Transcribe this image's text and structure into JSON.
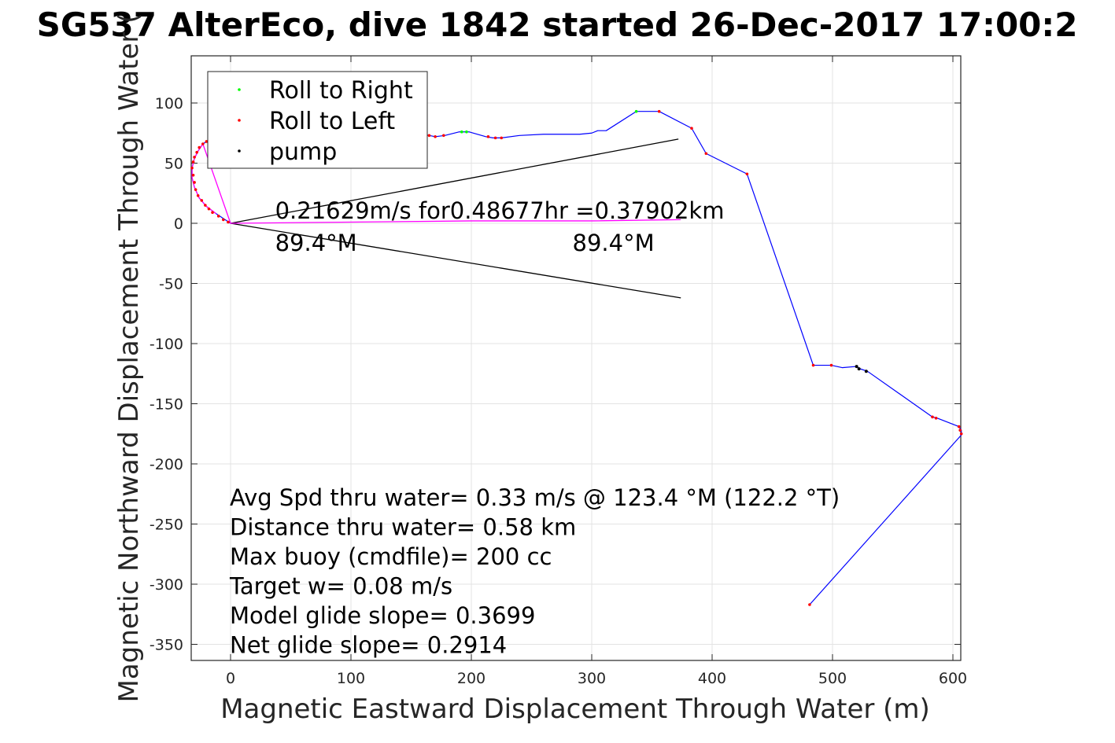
{
  "chart_data": {
    "type": "scatter",
    "title": "SG537 AlterEco, dive 1842 started 26-Dec-2017 17:00:2",
    "xlabel": "Magnetic Eastward Displacement Through Water (m)",
    "ylabel": "Magnetic Northward Displacement Through Water (",
    "xlim": [
      -32,
      606
    ],
    "ylim": [
      -364,
      140
    ],
    "x_ticks": [
      0,
      100,
      200,
      300,
      400,
      500,
      600
    ],
    "y_ticks": [
      100,
      50,
      0,
      -50,
      -100,
      -150,
      -200,
      -250,
      -300,
      -350
    ],
    "grid": true,
    "legend_placement": "top-left",
    "legend": [
      {
        "label": "Roll to Right",
        "color": "#00ff00"
      },
      {
        "label": "Roll to Left",
        "color": "#ff0000"
      },
      {
        "label": "pump",
        "color": "#000000"
      }
    ],
    "track": {
      "color": "#0000ff",
      "points": [
        [
          0,
          0
        ],
        [
          -12,
          8
        ],
        [
          -20,
          14
        ],
        [
          -26,
          21
        ],
        [
          -30,
          30
        ],
        [
          -32,
          38
        ],
        [
          -32,
          46
        ],
        [
          -30,
          54
        ],
        [
          -27,
          60
        ],
        [
          -23,
          66
        ],
        [
          -18,
          69
        ],
        [
          -10,
          72
        ],
        [
          0,
          74
        ],
        [
          20,
          75
        ],
        [
          50,
          75
        ],
        [
          80,
          75
        ],
        [
          110,
          75
        ],
        [
          140,
          74
        ],
        [
          160,
          74
        ],
        [
          165,
          73
        ],
        [
          170,
          72
        ],
        [
          178,
          73
        ],
        [
          190,
          76
        ],
        [
          198,
          76
        ],
        [
          212,
          72
        ],
        [
          218,
          71
        ],
        [
          225,
          71
        ],
        [
          240,
          73
        ],
        [
          260,
          74
        ],
        [
          290,
          74
        ],
        [
          300,
          75
        ],
        [
          305,
          77
        ],
        [
          312,
          77
        ],
        [
          337,
          93
        ],
        [
          356,
          93
        ],
        [
          383,
          79
        ],
        [
          395,
          58
        ],
        [
          429,
          41
        ],
        [
          484,
          -118
        ],
        [
          499,
          -118
        ],
        [
          508,
          -120
        ],
        [
          520,
          -119
        ],
        [
          523,
          -121
        ],
        [
          529,
          -123
        ],
        [
          583,
          -161
        ],
        [
          587,
          -162
        ],
        [
          605,
          -169
        ],
        [
          607,
          -172
        ],
        [
          607,
          -176
        ],
        [
          481,
          -317
        ]
      ]
    },
    "current_track": {
      "color": "#ff00ff",
      "points": [
        [
          -12,
          8
        ],
        [
          -20,
          14
        ],
        [
          -26,
          21
        ],
        [
          -30,
          30
        ],
        [
          -32,
          38
        ],
        [
          -32,
          46
        ],
        [
          -30,
          54
        ],
        [
          -27,
          60
        ],
        [
          -23,
          66
        ],
        [
          0,
          0
        ],
        [
          100,
          1
        ],
        [
          200,
          2
        ],
        [
          300,
          2
        ],
        [
          374,
          3
        ]
      ]
    },
    "roll_right_points": [
      [
        192,
        76
      ],
      [
        196,
        76
      ],
      [
        337,
        93
      ]
    ],
    "roll_left_points": [
      [
        -2,
        1
      ],
      [
        -6,
        3
      ],
      [
        -10,
        6
      ],
      [
        -15,
        9
      ],
      [
        -18,
        12
      ],
      [
        -21,
        15
      ],
      [
        -24,
        19
      ],
      [
        -27,
        23
      ],
      [
        -29,
        28
      ],
      [
        -30,
        34
      ],
      [
        -31,
        40
      ],
      [
        -32,
        46
      ],
      [
        -31,
        51
      ],
      [
        -30,
        55
      ],
      [
        -28,
        59
      ],
      [
        -26,
        63
      ],
      [
        -23,
        66
      ],
      [
        -20,
        68
      ],
      [
        -16,
        70
      ],
      [
        -10,
        72
      ],
      [
        165,
        73
      ],
      [
        170,
        72
      ],
      [
        177,
        73
      ],
      [
        214,
        72
      ],
      [
        220,
        71
      ],
      [
        225,
        71
      ],
      [
        356,
        93
      ],
      [
        383,
        79
      ],
      [
        395,
        58
      ],
      [
        429,
        41
      ],
      [
        484,
        -118
      ],
      [
        499,
        -118
      ],
      [
        583,
        -161
      ],
      [
        586,
        -162
      ],
      [
        605,
        -169
      ],
      [
        606,
        -172
      ],
      [
        607,
        -175
      ],
      [
        481,
        -317
      ]
    ],
    "pump_points": [
      [
        520,
        -119
      ],
      [
        522,
        -121
      ],
      [
        528,
        -123
      ]
    ],
    "wedge_lines": [
      {
        "from": [
          0,
          0
        ],
        "to": [
          372,
          70
        ]
      },
      {
        "from": [
          0,
          0
        ],
        "to": [
          374,
          -62
        ]
      }
    ],
    "annotations": [
      {
        "text": "0.21629m/s for0.48677hr =0.37902km",
        "x": 37,
        "y": 0
      },
      {
        "text": "89.4°M",
        "x": 37,
        "y": -11
      },
      {
        "text": "89.4°M",
        "x": 284,
        "y": -11
      }
    ],
    "info_lines": [
      "Avg Spd thru water=  0.33 m/s @ 123.4 °M (122.2 °T)",
      "Distance thru water=  0.58 km",
      "Max buoy (cmdfile)= 200 cc",
      "Target w= 0.08 m/s",
      "Model glide slope= 0.3699",
      "Net glide slope= 0.2914"
    ]
  }
}
